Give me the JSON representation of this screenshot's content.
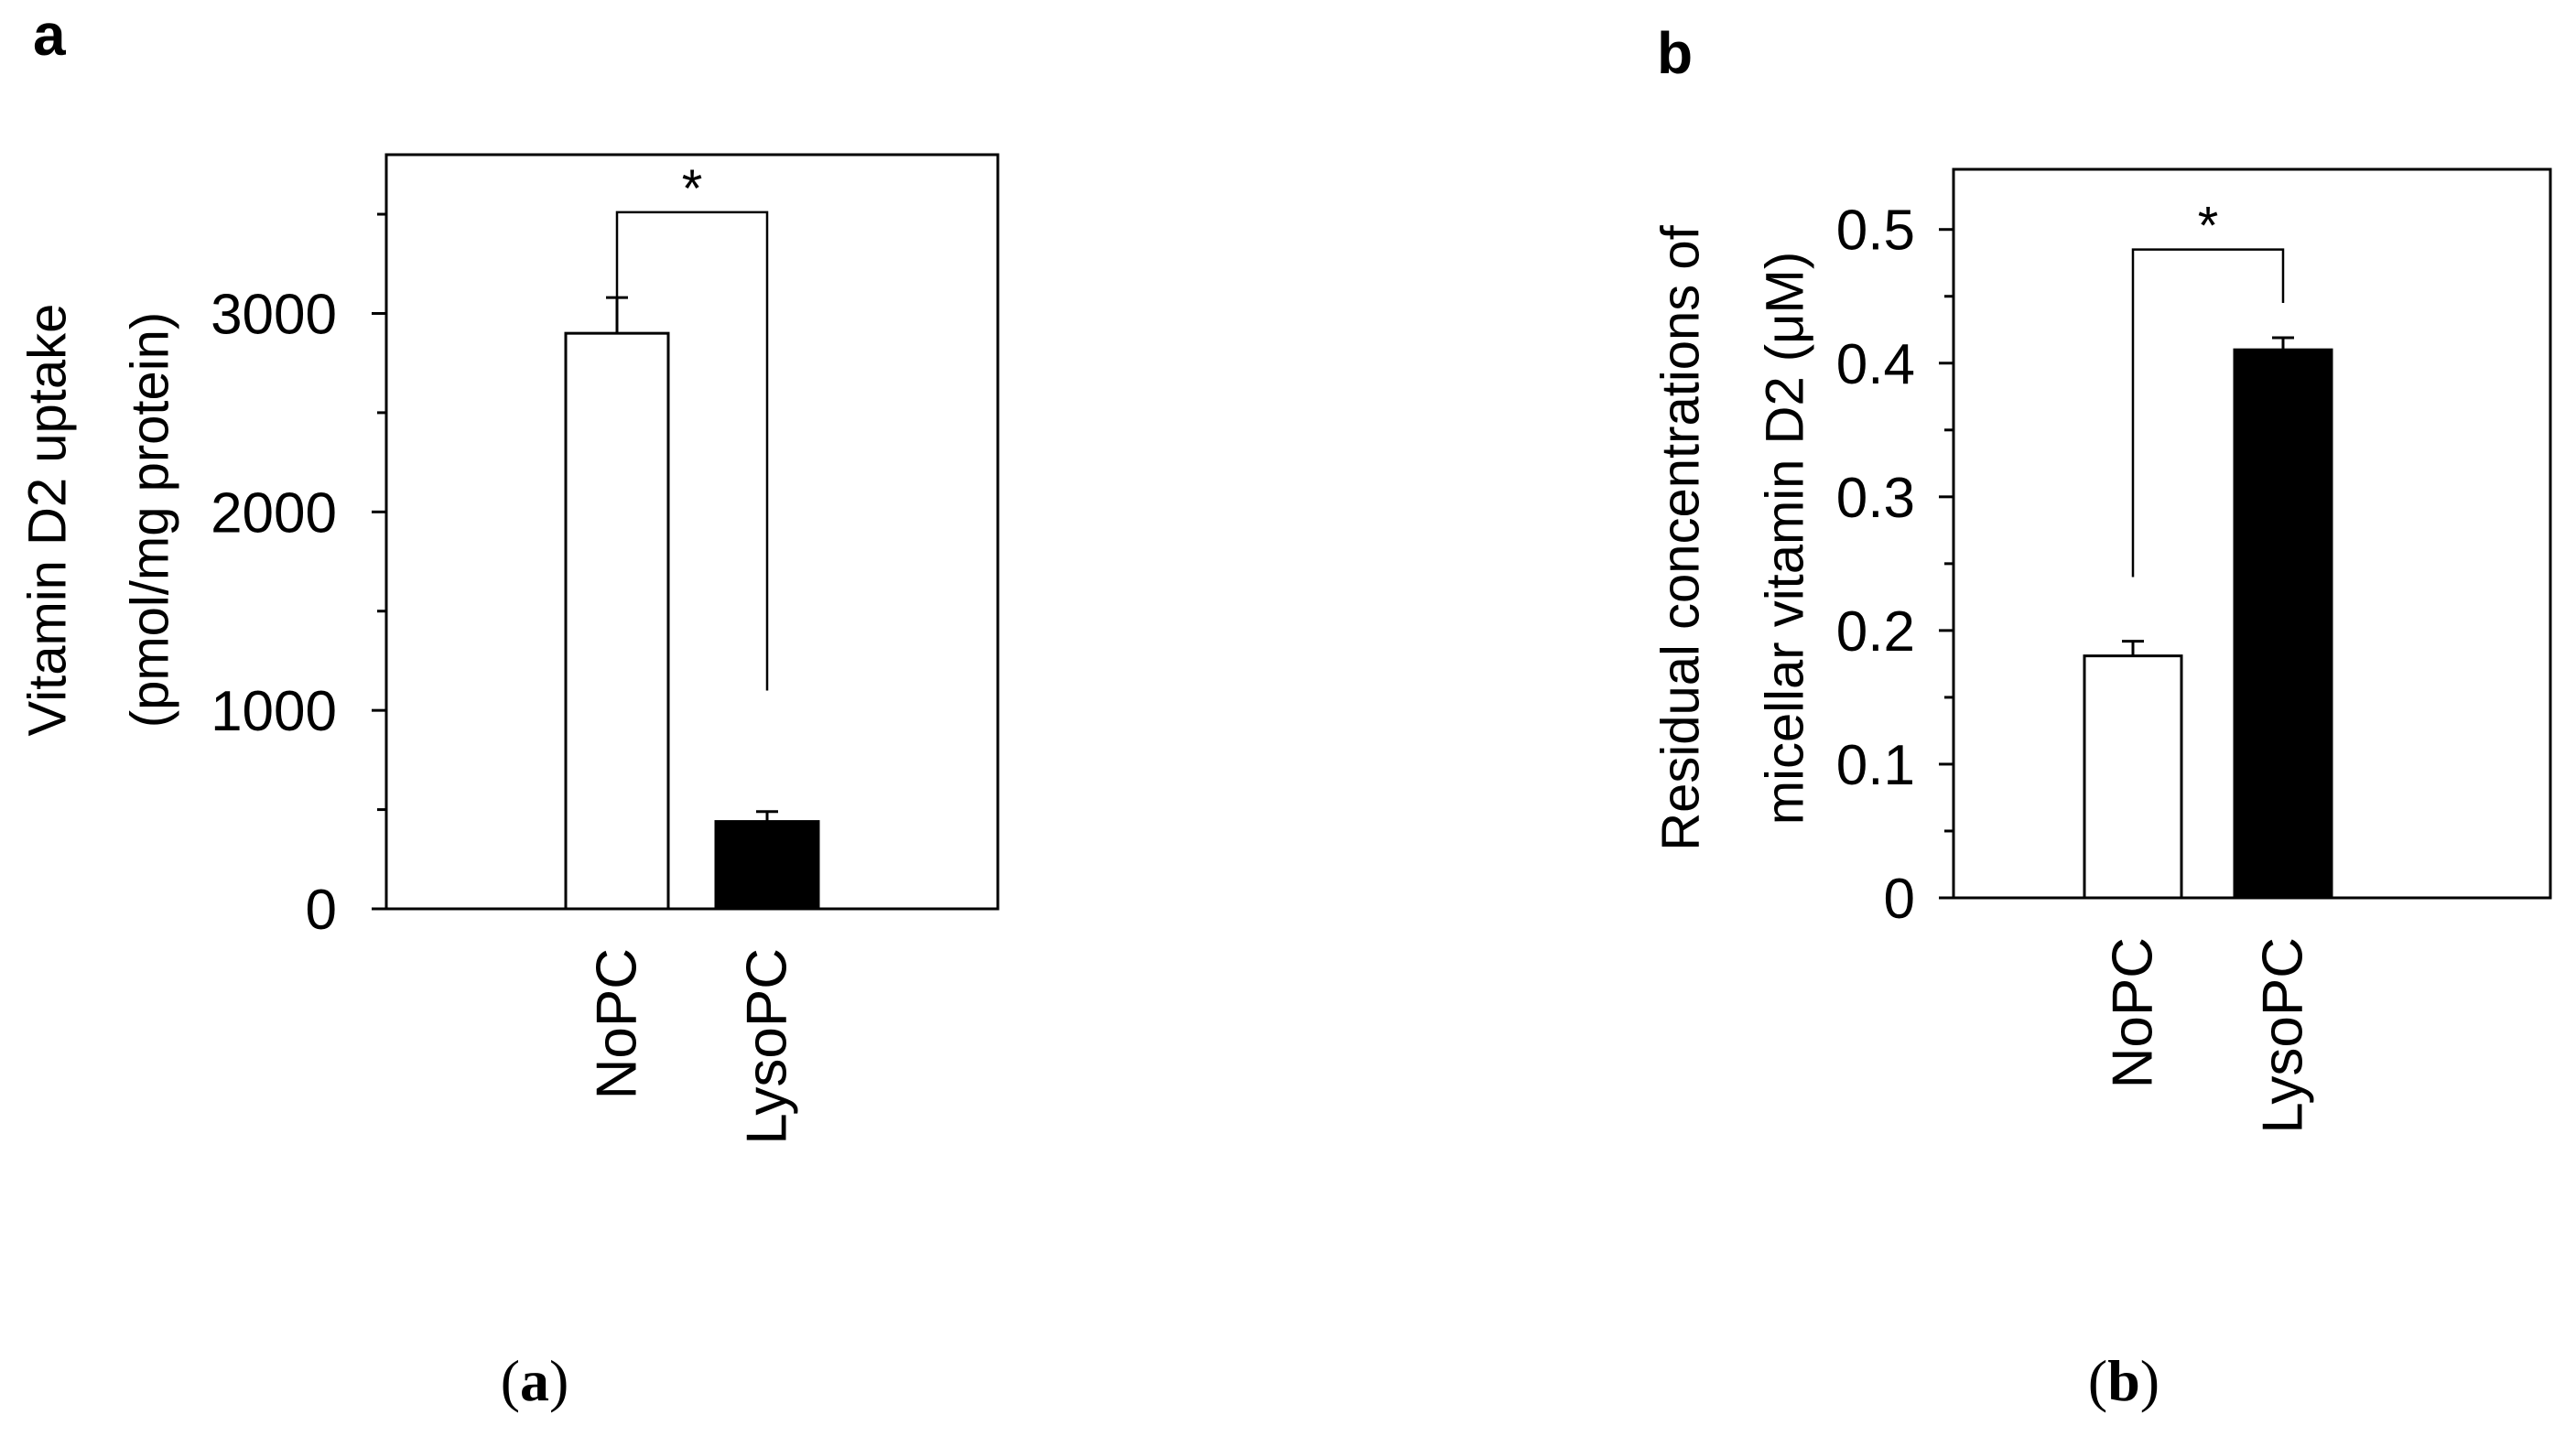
{
  "chart_data": [
    {
      "panel_letter": "a",
      "caption_letter": "a",
      "type": "bar",
      "categories": [
        "NoPC",
        "LysoPC"
      ],
      "values": [
        2900,
        440
      ],
      "errors": [
        180,
        50
      ],
      "bar_colors": [
        "#ffffff",
        "#000000"
      ],
      "ylabel_lines": [
        "Vitamin D2 uptake",
        "(pmol/mg protein)"
      ],
      "ylim": [
        0,
        3800
      ],
      "major_ticks": [
        0,
        1000,
        2000,
        3000
      ],
      "tick_labels": [
        "0",
        "1000",
        "2000",
        "3000"
      ],
      "minor_ticks": [
        500,
        1500,
        2500,
        3500
      ],
      "significance": {
        "label": "*",
        "between": [
          0,
          1
        ],
        "bracket_y": 3510,
        "left_end": 3080,
        "right_end": 1100
      }
    },
    {
      "panel_letter": "b",
      "caption_letter": "b",
      "type": "bar",
      "categories": [
        "NoPC",
        "LysoPC"
      ],
      "values": [
        0.181,
        0.41
      ],
      "errors": [
        0.011,
        0.009
      ],
      "bar_colors": [
        "#ffffff",
        "#000000"
      ],
      "ylabel_lines": [
        "Residual concentrations of",
        "micellar vitamin D2 (μM)"
      ],
      "ylim": [
        0,
        0.545
      ],
      "major_ticks": [
        0,
        0.1,
        0.2,
        0.3,
        0.4,
        0.5
      ],
      "tick_labels": [
        "0",
        "0.1",
        "0.2",
        "0.3",
        "0.4",
        "0.5"
      ],
      "minor_ticks": [
        0.05,
        0.15,
        0.25,
        0.35,
        0.45
      ],
      "significance": {
        "label": "*",
        "between": [
          0,
          1
        ],
        "bracket_y": 0.485,
        "left_end": 0.24,
        "right_end": 0.445
      }
    }
  ]
}
